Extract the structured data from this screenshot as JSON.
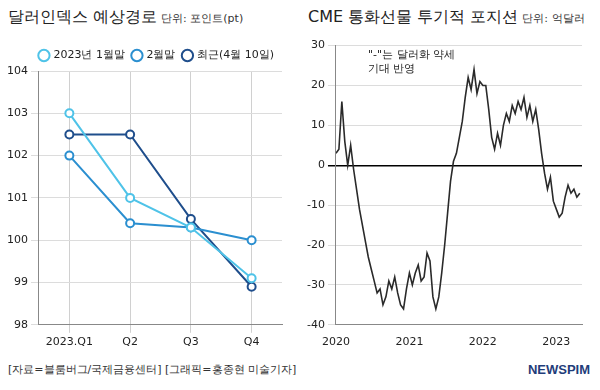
{
  "chart_data": [
    {
      "type": "line",
      "title": "달러인덱스 예상경로",
      "subtitle": "단위: 포인트(pt)",
      "categories": [
        "2023.Q1",
        "Q2",
        "Q3",
        "Q4"
      ],
      "series": [
        {
          "name": "2023년 1월말",
          "color": "#4fc3e8",
          "values": [
            103,
            101,
            100.3,
            99.1
          ]
        },
        {
          "name": "2월말",
          "color": "#2b8fd0",
          "values": [
            102,
            100.4,
            100.3,
            100.0
          ]
        },
        {
          "name": "최근(4월 10일)",
          "color": "#1f4e8c",
          "values": [
            102.5,
            102.5,
            100.5,
            98.9
          ]
        }
      ],
      "ylim": [
        98,
        104
      ],
      "yticks": [
        98,
        99,
        100,
        101,
        102,
        103,
        104
      ],
      "grid": true,
      "legend": "top",
      "marker": "circle",
      "line_style": "solid"
    },
    {
      "type": "line",
      "title": "CME 통화선물 투기적 포지션",
      "subtitle": "단위: 억달러",
      "annotation": [
        "\"-\"는 달러화 약세",
        "기대 반영"
      ],
      "x": [
        2020,
        2020.04,
        2020.08,
        2020.12,
        2020.16,
        2020.2,
        2020.24,
        2020.28,
        2020.32,
        2020.36,
        2020.4,
        2020.44,
        2020.48,
        2020.52,
        2020.56,
        2020.6,
        2020.64,
        2020.68,
        2020.72,
        2020.76,
        2020.8,
        2020.84,
        2020.88,
        2020.92,
        2020.96,
        2021,
        2021.04,
        2021.08,
        2021.12,
        2021.16,
        2021.2,
        2021.24,
        2021.28,
        2021.32,
        2021.36,
        2021.4,
        2021.44,
        2021.48,
        2021.52,
        2021.56,
        2021.6,
        2021.64,
        2021.68,
        2021.72,
        2021.76,
        2021.8,
        2021.84,
        2021.88,
        2021.92,
        2021.96,
        2022,
        2022.04,
        2022.08,
        2022.12,
        2022.16,
        2022.2,
        2022.24,
        2022.28,
        2022.32,
        2022.36,
        2022.4,
        2022.44,
        2022.48,
        2022.52,
        2022.56,
        2022.6,
        2022.64,
        2022.68,
        2022.72,
        2022.76,
        2022.8,
        2022.84,
        2022.88,
        2022.92,
        2022.96,
        2023,
        2023.04,
        2023.08,
        2023.12,
        2023.16,
        2023.2,
        2023.24,
        2023.28,
        2023.32
      ],
      "series": [
        {
          "name": "CME 통화선물 투기적 포지션",
          "color": "#2a2a2a",
          "values": [
            3,
            4,
            16,
            6,
            0,
            5,
            -1,
            -6,
            -11,
            -15,
            -19,
            -23,
            -26,
            -29,
            -32,
            -31,
            -35,
            -33,
            -29,
            -31,
            -28,
            -32,
            -35,
            -36,
            -31,
            -27,
            -30,
            -27,
            -25,
            -29,
            -28,
            -22,
            -24,
            -33,
            -36,
            -33,
            -27,
            -20,
            -12,
            -4,
            1,
            3,
            7,
            11,
            17,
            22,
            19,
            24,
            18,
            21,
            20,
            20,
            14,
            7,
            4,
            8,
            5,
            10,
            13,
            11,
            15,
            13,
            16,
            14,
            17,
            12,
            15,
            11,
            14,
            9,
            3,
            -2,
            -6,
            -3,
            -9,
            -11,
            -13,
            -12,
            -8,
            -5,
            -7,
            -6,
            -8,
            -7
          ]
        }
      ],
      "xlim": [
        2020,
        2023.35
      ],
      "xticks": [
        2020,
        2021,
        2022,
        2023
      ],
      "ylim": [
        -40,
        30
      ],
      "yticks": [
        -40,
        -30,
        -20,
        -10,
        0,
        10,
        20,
        30
      ],
      "grid": true,
      "line_style": "solid"
    }
  ],
  "source": "[자료=블룸버그/국제금융센터] [그래픽=홍종현 미술기자]",
  "logo": "NEWSPIM"
}
